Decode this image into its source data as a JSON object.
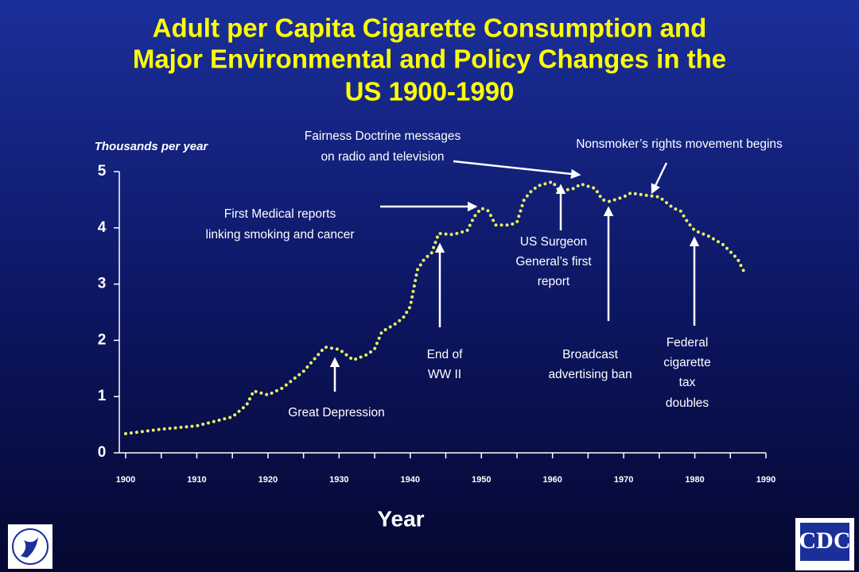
{
  "chart_data": {
    "type": "line",
    "title": [
      "Adult per Capita Cigarette Consumption and",
      "Major Environmental and Policy Changes in the",
      "US 1900-1990"
    ],
    "y_label": "Thousands per year",
    "x_label": "Year",
    "x": [
      1900,
      1905,
      1910,
      1915,
      1917,
      1918,
      1920,
      1922,
      1925,
      1928,
      1930,
      1932,
      1934,
      1935,
      1936,
      1938,
      1939,
      1940,
      1941,
      1942,
      1943,
      1944,
      1946,
      1948,
      1949,
      1950,
      1951,
      1952,
      1953,
      1954,
      1955,
      1956,
      1957,
      1958,
      1960,
      1961,
      1963,
      1964,
      1966,
      1967,
      1968,
      1970,
      1971,
      1973,
      1975,
      1977,
      1978,
      1979,
      1980,
      1982,
      1984,
      1986,
      1987
    ],
    "series": [
      {
        "name": "Adult per capita consumption",
        "color": "#e8f060",
        "values": [
          0.34,
          0.42,
          0.48,
          0.64,
          0.85,
          1.1,
          1.03,
          1.15,
          1.45,
          1.88,
          1.84,
          1.65,
          1.75,
          1.85,
          2.15,
          2.3,
          2.4,
          2.6,
          3.25,
          3.45,
          3.55,
          3.9,
          3.88,
          3.95,
          4.2,
          4.35,
          4.3,
          4.05,
          4.05,
          4.05,
          4.1,
          4.5,
          4.65,
          4.75,
          4.82,
          4.65,
          4.7,
          4.78,
          4.7,
          4.5,
          4.47,
          4.55,
          4.62,
          4.58,
          4.55,
          4.35,
          4.3,
          4.1,
          3.95,
          3.85,
          3.7,
          3.45,
          3.2
        ]
      }
    ],
    "xlim": [
      1900,
      1990
    ],
    "xticks": [
      1900,
      1910,
      1920,
      1930,
      1940,
      1950,
      1960,
      1970,
      1980,
      1990
    ],
    "xminorticks": [
      1905,
      1915,
      1925,
      1935,
      1945,
      1955,
      1965,
      1975,
      1985
    ],
    "ylim": [
      0,
      5
    ],
    "yticks": [
      0,
      1,
      2,
      3,
      4,
      5
    ],
    "annotations": [
      [
        "Great Depression"
      ],
      [
        "End of",
        "WW II"
      ],
      [
        "First Medical reports",
        "linking smoking and cancer"
      ],
      [
        "Fairness Doctrine messages",
        "on radio and television"
      ],
      [
        "US Surgeon",
        "General’s first",
        "report"
      ],
      [
        "Broadcast",
        "advertising ban"
      ],
      [
        "Federal",
        "cigarette",
        "tax",
        "doubles"
      ],
      [
        "Nonsmoker’s rights movement begins"
      ]
    ],
    "logo_text": "CDC"
  }
}
